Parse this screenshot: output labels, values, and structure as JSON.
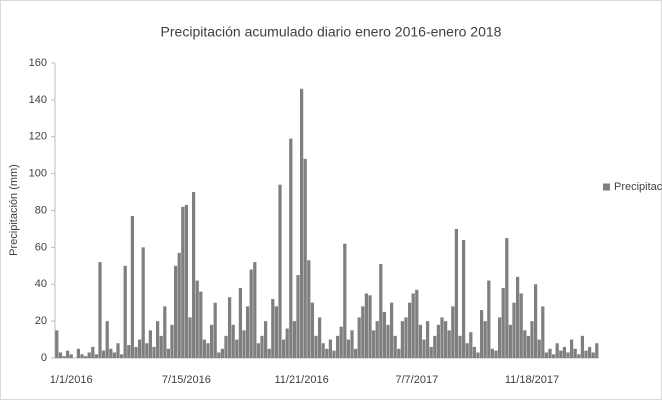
{
  "chart_data": {
    "type": "bar",
    "title": "Precipitación acumulado diario enero 2016-enero 2018",
    "y_label": "Precipitación (mm)",
    "categories": [
      null,
      null,
      null,
      null,
      "1/1/2016",
      null,
      null,
      null,
      null,
      null,
      null,
      null,
      null,
      null,
      null,
      null,
      null,
      null,
      null,
      null,
      null,
      null,
      null,
      null,
      null,
      null,
      null,
      null,
      null,
      null,
      null,
      null,
      null,
      null,
      null,
      null,
      "7/15/2016",
      null,
      null,
      null,
      null,
      null,
      null,
      null,
      null,
      null,
      null,
      null,
      null,
      null,
      null,
      null,
      null,
      null,
      null,
      null,
      null,
      null,
      null,
      null,
      null,
      null,
      null,
      null,
      null,
      null,
      null,
      null,
      "11/21/2016",
      null,
      null,
      null,
      null,
      null,
      null,
      null,
      null,
      null,
      null,
      null,
      null,
      null,
      null,
      null,
      null,
      null,
      null,
      null,
      null,
      null,
      null,
      null,
      null,
      null,
      null,
      null,
      null,
      null,
      null,
      null,
      "7/7/2017",
      null,
      null,
      null,
      null,
      null,
      null,
      null,
      null,
      null,
      null,
      null,
      null,
      null,
      null,
      null,
      null,
      null,
      null,
      null,
      null,
      null,
      null,
      null,
      null,
      null,
      null,
      null,
      null,
      null,
      null,
      null,
      "11/18/2017",
      null,
      null,
      null,
      null,
      null,
      null,
      null,
      null,
      null,
      null,
      null,
      null,
      null,
      null,
      null,
      null,
      null,
      null
    ],
    "series": [
      {
        "name": "Precipitación",
        "color": "#7f7f7f",
        "values": [
          15,
          3,
          1,
          4,
          2,
          0,
          5,
          2,
          1,
          3,
          6,
          2,
          52,
          4,
          20,
          5,
          3,
          8,
          2,
          50,
          7,
          77,
          6,
          10,
          60,
          8,
          15,
          6,
          20,
          12,
          28,
          5,
          18,
          50,
          57,
          82,
          83,
          22,
          90,
          42,
          36,
          10,
          8,
          18,
          30,
          3,
          5,
          12,
          33,
          18,
          10,
          38,
          15,
          28,
          48,
          52,
          8,
          12,
          20,
          5,
          32,
          28,
          94,
          10,
          16,
          119,
          20,
          45,
          146,
          108,
          53,
          30,
          12,
          22,
          8,
          5,
          10,
          4,
          12,
          17,
          62,
          10,
          15,
          5,
          22,
          28,
          35,
          34,
          15,
          20,
          51,
          25,
          18,
          30,
          12,
          5,
          20,
          22,
          30,
          35,
          37,
          18,
          10,
          20,
          6,
          12,
          18,
          22,
          20,
          15,
          28,
          70,
          12,
          64,
          8,
          14,
          6,
          3,
          26,
          20,
          42,
          5,
          4,
          22,
          38,
          65,
          18,
          30,
          44,
          35,
          15,
          12,
          20,
          40,
          10,
          28,
          3,
          5,
          2,
          8,
          4,
          6,
          3,
          10,
          5,
          2,
          12,
          4,
          6,
          3,
          8
        ]
      }
    ],
    "ylim": [
      0,
      160
    ],
    "yticks": [
      0,
      20,
      40,
      60,
      80,
      100,
      120,
      140,
      160
    ],
    "grid": false,
    "legend": "right"
  }
}
